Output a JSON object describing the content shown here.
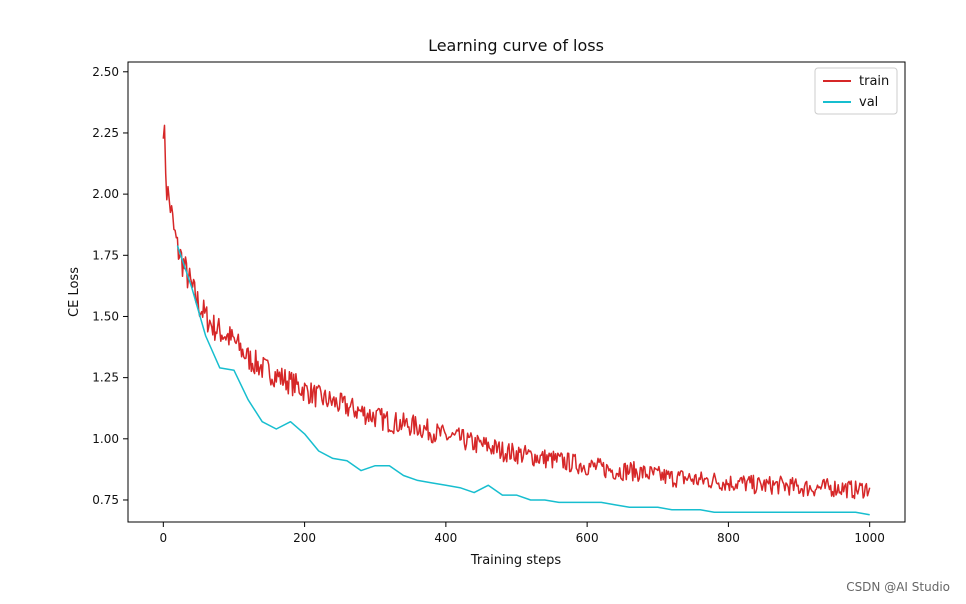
{
  "chart_data": {
    "type": "line",
    "title": "Learning curve of loss",
    "xlabel": "Training steps",
    "ylabel": "CE Loss",
    "xlim": [
      -50,
      1050
    ],
    "ylim": [
      0.66,
      2.54
    ],
    "xticks": [
      0,
      200,
      400,
      600,
      800,
      1000
    ],
    "yticks": [
      0.75,
      1.0,
      1.25,
      1.5,
      1.75,
      2.0,
      2.25,
      2.5
    ],
    "grid": false,
    "legend_position": "top-right",
    "series": [
      {
        "name": "train",
        "color": "#d62728",
        "x": [
          0,
          5,
          10,
          15,
          20,
          30,
          40,
          50,
          60,
          70,
          80,
          90,
          100,
          120,
          140,
          160,
          180,
          200,
          220,
          240,
          260,
          280,
          300,
          320,
          340,
          360,
          380,
          400,
          420,
          440,
          460,
          480,
          500,
          520,
          540,
          560,
          580,
          600,
          620,
          640,
          660,
          680,
          700,
          720,
          740,
          760,
          780,
          800,
          820,
          840,
          860,
          880,
          900,
          920,
          940,
          960,
          980,
          1000
        ],
        "y": [
          2.31,
          2.02,
          1.95,
          1.85,
          1.78,
          1.7,
          1.62,
          1.55,
          1.5,
          1.46,
          1.44,
          1.42,
          1.4,
          1.33,
          1.29,
          1.26,
          1.23,
          1.2,
          1.17,
          1.15,
          1.13,
          1.11,
          1.09,
          1.07,
          1.06,
          1.05,
          1.03,
          1.01,
          1.0,
          0.98,
          0.97,
          0.95,
          0.94,
          0.93,
          0.92,
          0.91,
          0.9,
          0.89,
          0.88,
          0.87,
          0.87,
          0.86,
          0.85,
          0.84,
          0.84,
          0.83,
          0.83,
          0.82,
          0.82,
          0.81,
          0.81,
          0.81,
          0.8,
          0.8,
          0.8,
          0.8,
          0.79,
          0.8
        ]
      },
      {
        "name": "val",
        "color": "#17becf",
        "x": [
          20,
          40,
          60,
          80,
          100,
          120,
          140,
          160,
          180,
          200,
          220,
          240,
          260,
          280,
          300,
          320,
          340,
          360,
          380,
          400,
          420,
          440,
          460,
          480,
          500,
          520,
          540,
          560,
          580,
          600,
          620,
          640,
          660,
          680,
          700,
          720,
          740,
          760,
          780,
          800,
          820,
          840,
          860,
          880,
          900,
          920,
          940,
          960,
          980,
          1000
        ],
        "y": [
          1.79,
          1.62,
          1.42,
          1.29,
          1.28,
          1.16,
          1.07,
          1.04,
          1.07,
          1.02,
          0.95,
          0.92,
          0.91,
          0.87,
          0.89,
          0.89,
          0.85,
          0.83,
          0.82,
          0.81,
          0.8,
          0.78,
          0.81,
          0.77,
          0.77,
          0.75,
          0.75,
          0.74,
          0.74,
          0.74,
          0.74,
          0.73,
          0.72,
          0.72,
          0.72,
          0.71,
          0.71,
          0.71,
          0.7,
          0.7,
          0.7,
          0.7,
          0.7,
          0.7,
          0.7,
          0.7,
          0.7,
          0.7,
          0.7,
          0.69
        ]
      }
    ]
  },
  "watermark": "CSDN @AI Studio"
}
